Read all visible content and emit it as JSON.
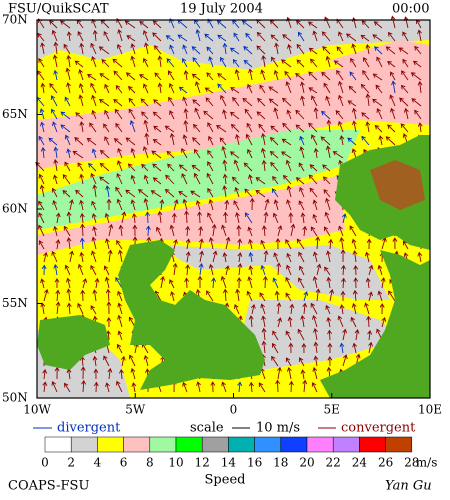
{
  "header": {
    "source": "FSU/QuikSCAT",
    "date": "19 July 2004",
    "time": "00:00"
  },
  "map": {
    "lat_ticks": [
      {
        "value": 70,
        "label": "70N"
      },
      {
        "value": 65,
        "label": "65N"
      },
      {
        "value": 60,
        "label": "60N"
      },
      {
        "value": 55,
        "label": "55N"
      },
      {
        "value": 50,
        "label": "50N"
      }
    ],
    "lon_ticks": [
      {
        "value": -10,
        "label": "10W"
      },
      {
        "value": -5,
        "label": "5W"
      },
      0,
      {
        "value": 5,
        "label": "5E"
      },
      {
        "value": 10,
        "label": "10E"
      }
    ],
    "lat_range": [
      50,
      70
    ],
    "lon_range": [
      -10,
      10
    ]
  },
  "legend": {
    "divergent": "divergent",
    "scale": "scale",
    "scale_value": "10 m/s",
    "convergent": "convergent",
    "divergent_color": "#0030c0",
    "convergent_color": "#8b0000"
  },
  "colorbar": {
    "labels": [
      0,
      2,
      4,
      6,
      8,
      10,
      12,
      14,
      16,
      18,
      20,
      22,
      24,
      26,
      28
    ],
    "unit": "m/s",
    "title": "Speed",
    "colors": [
      "#ffffff",
      "#d3d3d3",
      "#ffff00",
      "#ffc0c0",
      "#a0f8a0",
      "#00ff00",
      "#a0a0a0",
      "#00b0b0",
      "#3090ff",
      "#1040ff",
      "#ff80ff",
      "#c080ff",
      "#ff0000",
      "#c04000"
    ]
  },
  "footer": {
    "org": "COAPS-FSU",
    "author": "Yan Gu"
  }
}
